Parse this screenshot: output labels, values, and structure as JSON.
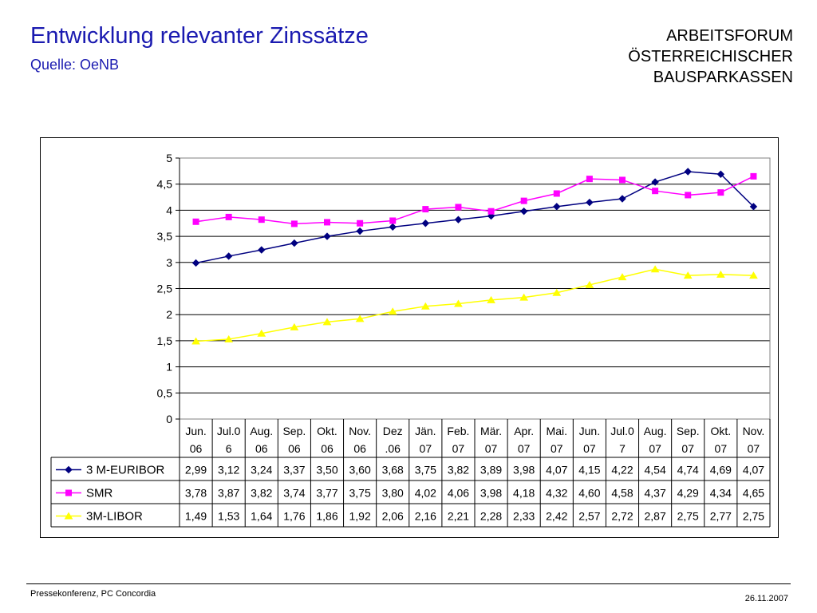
{
  "header": {
    "title": "Entwicklung relevanter Zinssätze",
    "subtitle": "Quelle: OeNB",
    "org_lines": [
      "ARBEITSFORUM",
      "ÖSTERREICHISCHER",
      "BAUSPARKASSEN"
    ]
  },
  "footer": {
    "left": "Pressekonferenz, PC Concordia",
    "right": "26.11.2007"
  },
  "colors": {
    "title": "#1a1ab0",
    "euribor": "#000080",
    "smr": "#ff00ff",
    "libor": "#ffff00"
  },
  "chart_data": {
    "type": "line",
    "title": "",
    "xlabel": "",
    "ylabel": "",
    "ylim": [
      0,
      5
    ],
    "yticks": [
      "0",
      "0,5",
      "1",
      "1,5",
      "2",
      "2,5",
      "3",
      "3,5",
      "4",
      "4,5",
      "5"
    ],
    "grid": true,
    "legend": "data-table",
    "categories": [
      [
        "Jun.",
        "06"
      ],
      [
        "Jul.0",
        "6"
      ],
      [
        "Aug.",
        "06"
      ],
      [
        "Sep.",
        "06"
      ],
      [
        "Okt.",
        "06"
      ],
      [
        "Nov.",
        "06"
      ],
      [
        "Dez",
        ".06"
      ],
      [
        "Jän.",
        "07"
      ],
      [
        "Feb.",
        "07"
      ],
      [
        "Mär.",
        "07"
      ],
      [
        "Apr.",
        "07"
      ],
      [
        "Mai.",
        "07"
      ],
      [
        "Jun.",
        "07"
      ],
      [
        "Jul.0",
        "7"
      ],
      [
        "Aug.",
        "07"
      ],
      [
        "Sep.",
        "07"
      ],
      [
        "Okt.",
        "07"
      ],
      [
        "Nov.",
        "07"
      ]
    ],
    "series": [
      {
        "name": "3 M-EURIBOR",
        "marker": "diamond",
        "color": "#000080",
        "values": [
          2.99,
          3.12,
          3.24,
          3.37,
          3.5,
          3.6,
          3.68,
          3.75,
          3.82,
          3.89,
          3.98,
          4.07,
          4.15,
          4.22,
          4.54,
          4.74,
          4.69,
          4.07
        ],
        "labels": [
          "2,99",
          "3,12",
          "3,24",
          "3,37",
          "3,50",
          "3,60",
          "3,68",
          "3,75",
          "3,82",
          "3,89",
          "3,98",
          "4,07",
          "4,15",
          "4,22",
          "4,54",
          "4,74",
          "4,69",
          "4,07"
        ]
      },
      {
        "name": "SMR",
        "marker": "square",
        "color": "#ff00ff",
        "values": [
          3.78,
          3.87,
          3.82,
          3.74,
          3.77,
          3.75,
          3.8,
          4.02,
          4.06,
          3.98,
          4.18,
          4.32,
          4.6,
          4.58,
          4.37,
          4.29,
          4.34,
          4.65
        ],
        "labels": [
          "3,78",
          "3,87",
          "3,82",
          "3,74",
          "3,77",
          "3,75",
          "3,80",
          "4,02",
          "4,06",
          "3,98",
          "4,18",
          "4,32",
          "4,60",
          "4,58",
          "4,37",
          "4,29",
          "4,34",
          "4,65"
        ]
      },
      {
        "name": "3M-LIBOR",
        "marker": "triangle",
        "color": "#ffff00",
        "values": [
          1.49,
          1.53,
          1.64,
          1.76,
          1.86,
          1.92,
          2.06,
          2.16,
          2.21,
          2.28,
          2.33,
          2.42,
          2.57,
          2.72,
          2.87,
          2.75,
          2.77,
          2.75
        ],
        "labels": [
          "1,49",
          "1,53",
          "1,64",
          "1,76",
          "1,86",
          "1,92",
          "2,06",
          "2,16",
          "2,21",
          "2,28",
          "2,33",
          "2,42",
          "2,57",
          "2,72",
          "2,87",
          "2,75",
          "2,77",
          "2,75"
        ]
      }
    ]
  }
}
